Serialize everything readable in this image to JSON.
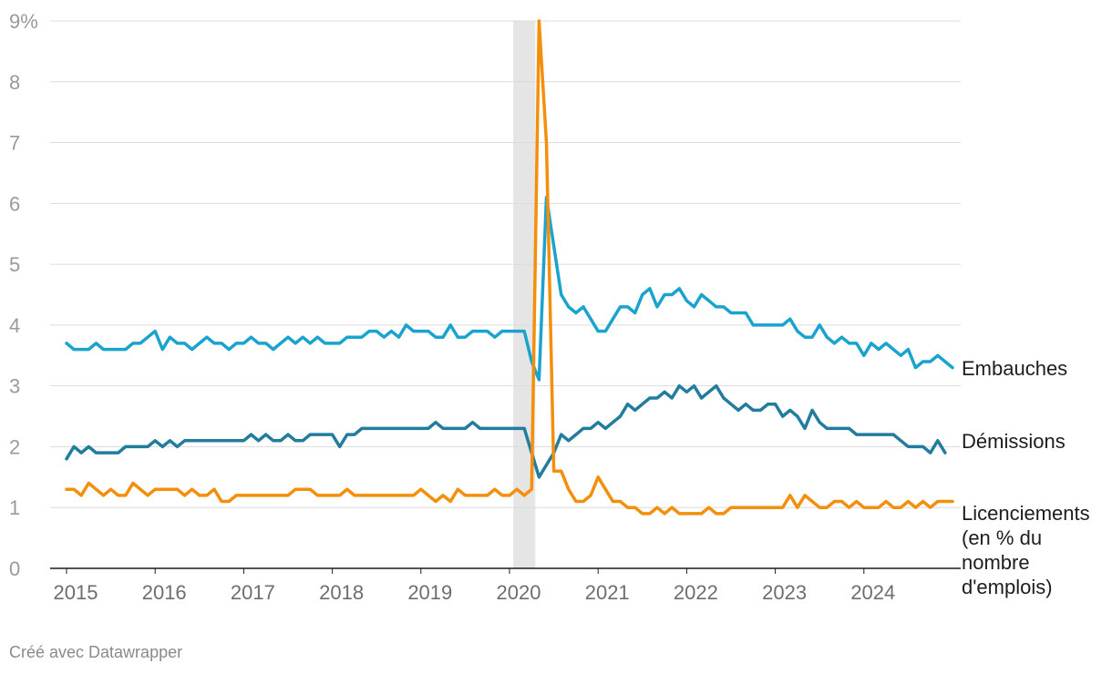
{
  "chart_data": {
    "type": "line",
    "title": "",
    "xlabel": "",
    "ylabel": "",
    "ylim": [
      0,
      9
    ],
    "y_ticks": [
      "0",
      "1",
      "2",
      "3",
      "4",
      "5",
      "6",
      "7",
      "8",
      "9%"
    ],
    "x_ticks": [
      "2015",
      "2016",
      "2017",
      "2018",
      "2019",
      "2020",
      "2021",
      "2022",
      "2023",
      "2024"
    ],
    "grid": true,
    "legend": "direct labels at line ends",
    "recession_band": {
      "start": "2020-02",
      "end": "2020-04",
      "color": "#e5e5e5"
    },
    "series": [
      {
        "name": "Embauches",
        "color": "#1aa3cf",
        "start": "2015-01",
        "values": [
          3.7,
          3.6,
          3.6,
          3.6,
          3.7,
          3.6,
          3.6,
          3.6,
          3.6,
          3.7,
          3.7,
          3.8,
          3.9,
          3.6,
          3.8,
          3.7,
          3.7,
          3.6,
          3.7,
          3.8,
          3.7,
          3.7,
          3.6,
          3.7,
          3.7,
          3.8,
          3.7,
          3.7,
          3.6,
          3.7,
          3.8,
          3.7,
          3.8,
          3.7,
          3.8,
          3.7,
          3.7,
          3.7,
          3.8,
          3.8,
          3.8,
          3.9,
          3.9,
          3.8,
          3.9,
          3.8,
          4.0,
          3.9,
          3.9,
          3.9,
          3.8,
          3.8,
          4.0,
          3.8,
          3.8,
          3.9,
          3.9,
          3.9,
          3.8,
          3.9,
          3.9,
          3.9,
          3.9,
          3.4,
          3.1,
          6.1,
          5.3,
          4.5,
          4.3,
          4.2,
          4.3,
          4.1,
          3.9,
          3.9,
          4.1,
          4.3,
          4.3,
          4.2,
          4.5,
          4.6,
          4.3,
          4.5,
          4.5,
          4.6,
          4.4,
          4.3,
          4.5,
          4.4,
          4.3,
          4.3,
          4.2,
          4.2,
          4.2,
          4.0,
          4.0,
          4.0,
          4.0,
          4.0,
          4.1,
          3.9,
          3.8,
          3.8,
          4.0,
          3.8,
          3.7,
          3.8,
          3.7,
          3.7,
          3.5,
          3.7,
          3.6,
          3.7,
          3.6,
          3.5,
          3.6,
          3.3,
          3.4,
          3.4,
          3.5,
          3.4,
          3.3
        ]
      },
      {
        "name": "Démissions",
        "color": "#227c9d",
        "start": "2015-01",
        "values": [
          1.8,
          2.0,
          1.9,
          2.0,
          1.9,
          1.9,
          1.9,
          1.9,
          2.0,
          2.0,
          2.0,
          2.0,
          2.1,
          2.0,
          2.1,
          2.0,
          2.1,
          2.1,
          2.1,
          2.1,
          2.1,
          2.1,
          2.1,
          2.1,
          2.1,
          2.2,
          2.1,
          2.2,
          2.1,
          2.1,
          2.2,
          2.1,
          2.1,
          2.2,
          2.2,
          2.2,
          2.2,
          2.0,
          2.2,
          2.2,
          2.3,
          2.3,
          2.3,
          2.3,
          2.3,
          2.3,
          2.3,
          2.3,
          2.3,
          2.3,
          2.4,
          2.3,
          2.3,
          2.3,
          2.3,
          2.4,
          2.3,
          2.3,
          2.3,
          2.3,
          2.3,
          2.3,
          2.3,
          1.9,
          1.5,
          1.7,
          1.9,
          2.2,
          2.1,
          2.2,
          2.3,
          2.3,
          2.4,
          2.3,
          2.4,
          2.5,
          2.7,
          2.6,
          2.7,
          2.8,
          2.8,
          2.9,
          2.8,
          3.0,
          2.9,
          3.0,
          2.8,
          2.9,
          3.0,
          2.8,
          2.7,
          2.6,
          2.7,
          2.6,
          2.6,
          2.7,
          2.7,
          2.5,
          2.6,
          2.5,
          2.3,
          2.6,
          2.4,
          2.3,
          2.3,
          2.3,
          2.3,
          2.2,
          2.2,
          2.2,
          2.2,
          2.2,
          2.2,
          2.1,
          2.0,
          2.0,
          2.0,
          1.9,
          2.1,
          1.9
        ]
      },
      {
        "name": "Licenciements (en % du nombre d'emplois)",
        "label_lines": [
          "Licenciements",
          "(en % du",
          "nombre",
          "d'emplois)"
        ],
        "color": "#f38f0b",
        "start": "2015-01",
        "values": [
          1.3,
          1.3,
          1.2,
          1.4,
          1.3,
          1.2,
          1.3,
          1.2,
          1.2,
          1.4,
          1.3,
          1.2,
          1.3,
          1.3,
          1.3,
          1.3,
          1.2,
          1.3,
          1.2,
          1.2,
          1.3,
          1.1,
          1.1,
          1.2,
          1.2,
          1.2,
          1.2,
          1.2,
          1.2,
          1.2,
          1.2,
          1.3,
          1.3,
          1.3,
          1.2,
          1.2,
          1.2,
          1.2,
          1.3,
          1.2,
          1.2,
          1.2,
          1.2,
          1.2,
          1.2,
          1.2,
          1.2,
          1.2,
          1.3,
          1.2,
          1.1,
          1.2,
          1.1,
          1.3,
          1.2,
          1.2,
          1.2,
          1.2,
          1.3,
          1.2,
          1.2,
          1.3,
          1.2,
          1.3,
          9.0,
          7.0,
          1.6,
          1.6,
          1.3,
          1.1,
          1.1,
          1.2,
          1.5,
          1.3,
          1.1,
          1.1,
          1.0,
          1.0,
          0.9,
          0.9,
          1.0,
          0.9,
          1.0,
          0.9,
          0.9,
          0.9,
          0.9,
          1.0,
          0.9,
          0.9,
          1.0,
          1.0,
          1.0,
          1.0,
          1.0,
          1.0,
          1.0,
          1.0,
          1.2,
          1.0,
          1.2,
          1.1,
          1.0,
          1.0,
          1.1,
          1.1,
          1.0,
          1.1,
          1.0,
          1.0,
          1.0,
          1.1,
          1.0,
          1.0,
          1.1,
          1.0,
          1.1,
          1.0,
          1.1,
          1.1,
          1.1
        ]
      }
    ]
  },
  "footer": {
    "credit": "Créé avec Datawrapper"
  }
}
